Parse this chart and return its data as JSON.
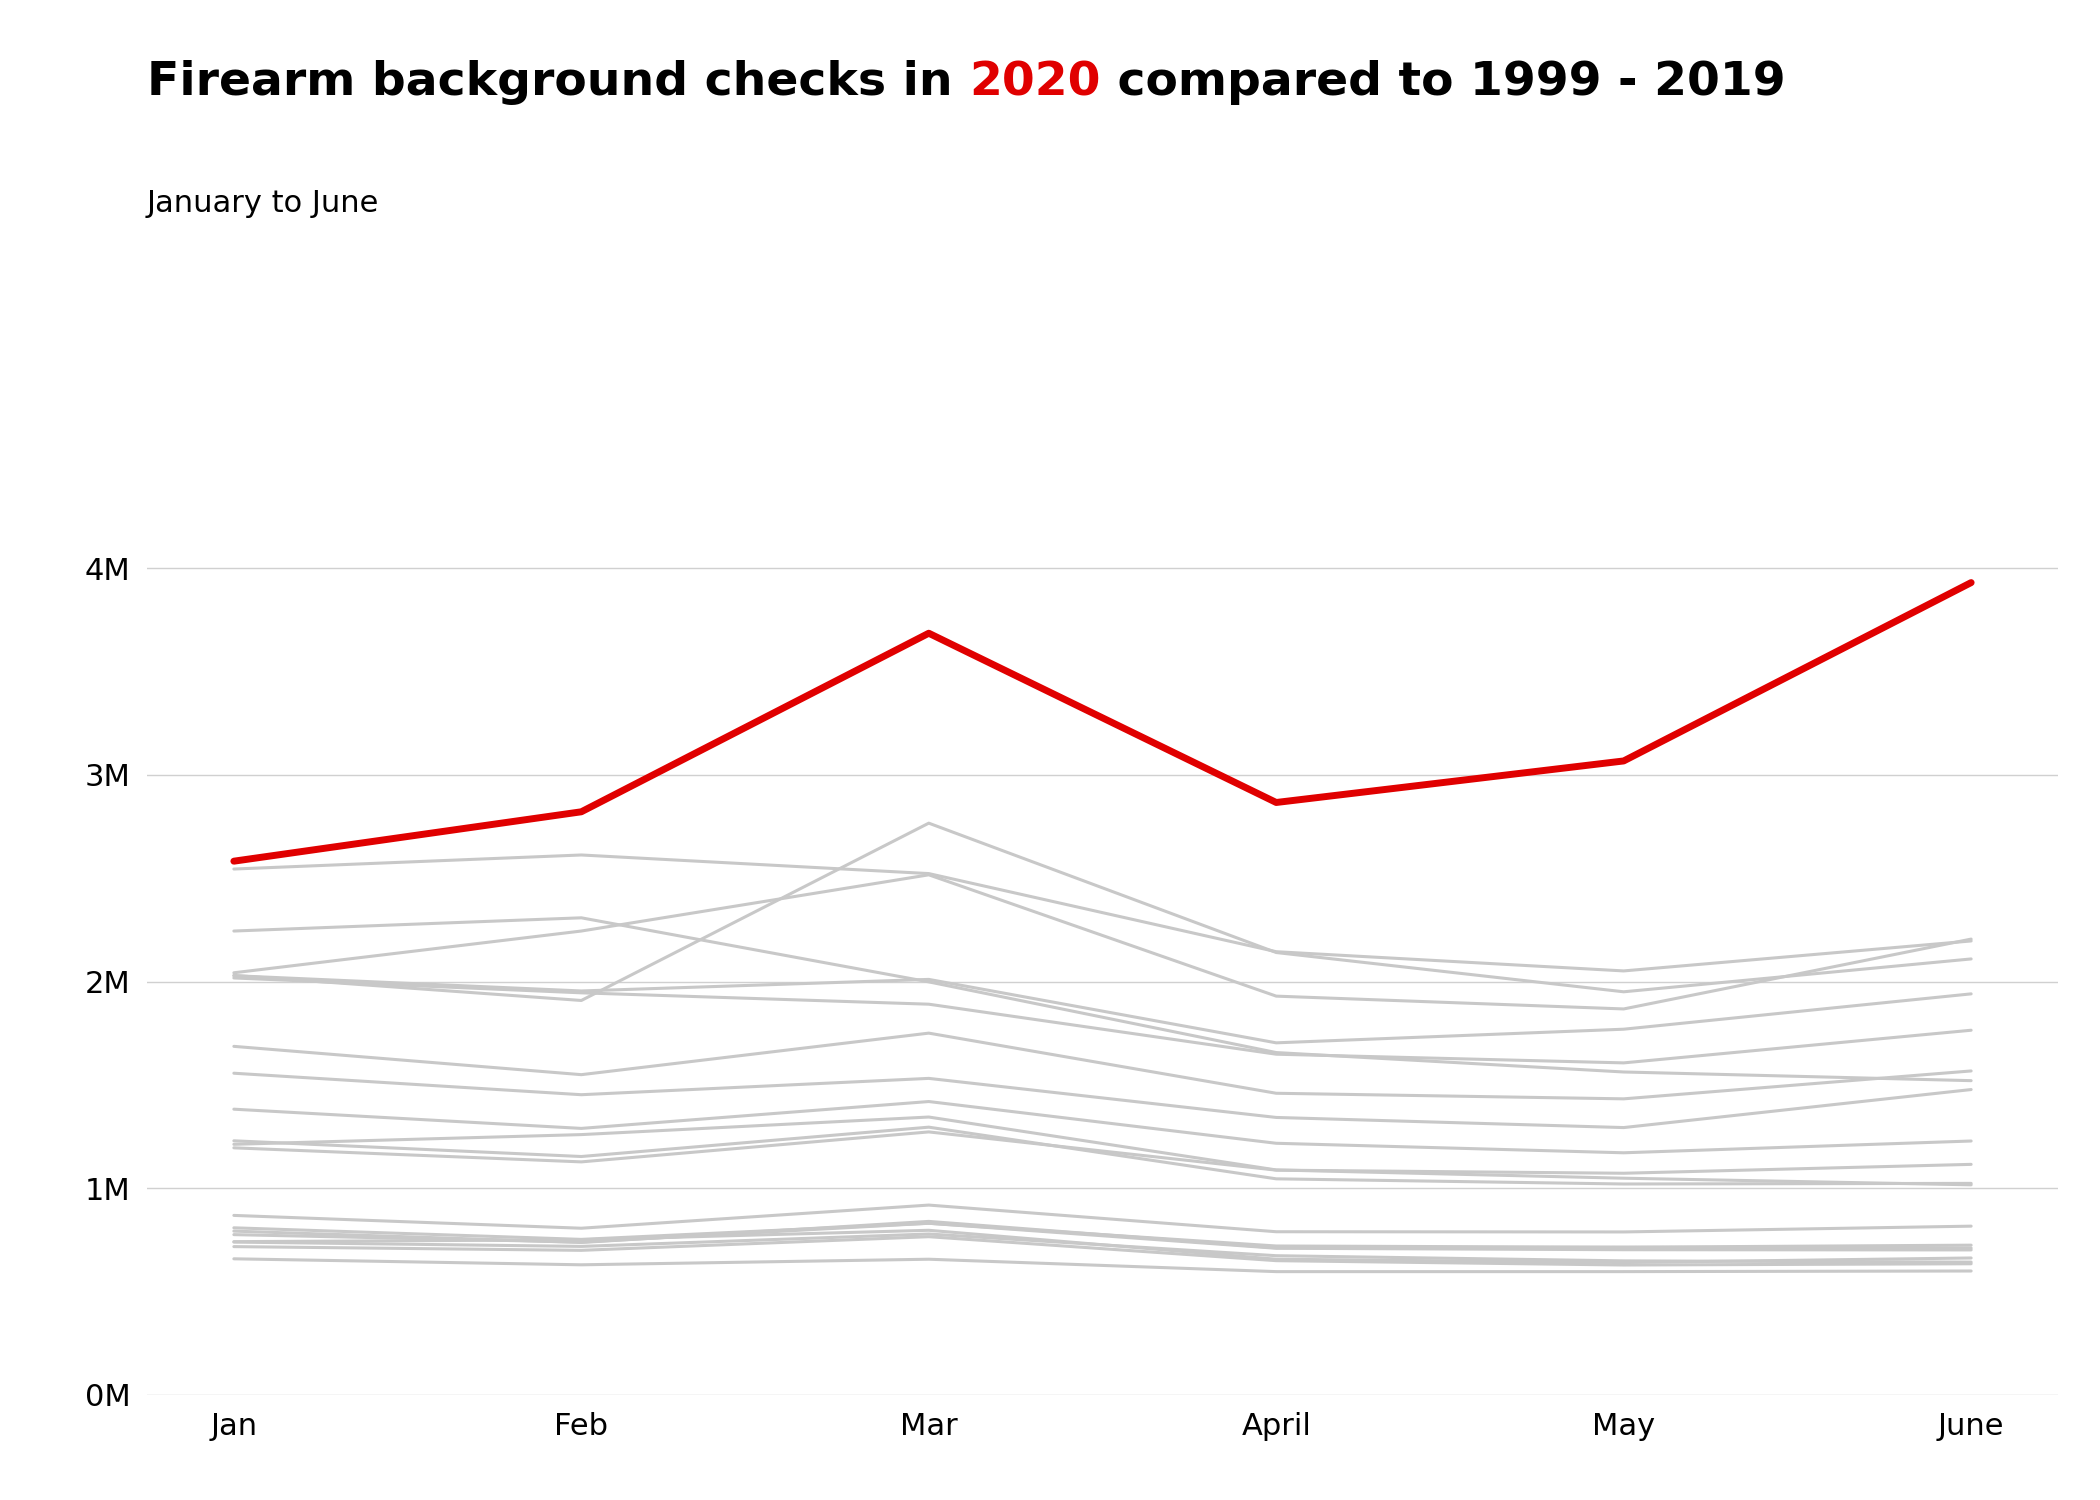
{
  "title_part1": "Firearm background checks in ",
  "title_highlight": "2020",
  "title_part2": " compared to 1999 - 2019",
  "subtitle": "January to June",
  "months": [
    "Jan",
    "Feb",
    "Mar",
    "April",
    "May",
    "June"
  ],
  "highlight_year": "2020",
  "highlight_color": "#e00000",
  "other_color": "#c8c8c8",
  "background_color": "#ffffff",
  "ylim": [
    0,
    4500000
  ],
  "yticks": [
    0,
    1000000,
    2000000,
    3000000,
    4000000
  ],
  "ytick_labels": [
    "0M",
    "1M",
    "2M",
    "3M",
    "4M"
  ],
  "title_fontsize": 34,
  "subtitle_fontsize": 22,
  "axis_fontsize": 22,
  "year_data": {
    "2020": [
      2583000,
      2822000,
      3686000,
      2867000,
      3068000,
      3931000
    ],
    "2019": [
      2029000,
      1955000,
      2011000,
      1704000,
      1770000,
      1941000
    ],
    "2018": [
      2030000,
      1909000,
      2767000,
      2141000,
      1951000,
      2110000
    ],
    "2017": [
      2043000,
      2245000,
      2517000,
      1930000,
      1868000,
      2206000
    ],
    "2016": [
      2545000,
      2613000,
      2523000,
      2145000,
      2052000,
      2197000
    ],
    "2015": [
      2018000,
      1946000,
      1891000,
      1649000,
      1607000,
      1765000
    ],
    "2014": [
      1687000,
      1550000,
      1751000,
      1460000,
      1433000,
      1568000
    ],
    "2013": [
      2245000,
      2309000,
      1999000,
      1657000,
      1563000,
      1521000
    ],
    "2012": [
      1557000,
      1453000,
      1532000,
      1343000,
      1294000,
      1478000
    ],
    "2011": [
      1383000,
      1290000,
      1420000,
      1218000,
      1172000,
      1229000
    ],
    "2010": [
      1196000,
      1128000,
      1273000,
      1088000,
      1073000,
      1116000
    ],
    "2009": [
      1213000,
      1260000,
      1345000,
      1089000,
      1049000,
      1017000
    ],
    "2008": [
      1230000,
      1154000,
      1296000,
      1046000,
      1021000,
      1024000
    ],
    "2007": [
      869000,
      807000,
      919000,
      790000,
      789000,
      817000
    ],
    "2006": [
      809000,
      753000,
      831000,
      721000,
      715000,
      725000
    ],
    "2005": [
      793000,
      738000,
      840000,
      712000,
      715000,
      711000
    ],
    "2004": [
      776000,
      740000,
      831000,
      710000,
      703000,
      702000
    ],
    "2003": [
      740000,
      719000,
      779000,
      674000,
      649000,
      643000
    ],
    "2002": [
      718000,
      700000,
      766000,
      650000,
      629000,
      635000
    ],
    "2001": [
      742000,
      751000,
      797000,
      657000,
      641000,
      663000
    ],
    "1999": [
      659000,
      630000,
      657000,
      597000,
      597000,
      600000
    ]
  }
}
